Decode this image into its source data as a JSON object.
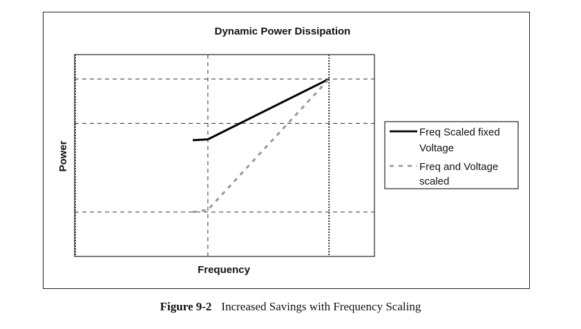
{
  "chart_data": {
    "type": "line",
    "title": "Dynamic Power Dissipation",
    "xlabel": "Frequency",
    "ylabel": "Power",
    "grid": true,
    "legend_position": "right",
    "series": [
      {
        "name": "Freq Scaled fixed Voltage",
        "style": "solid",
        "color": "#000000",
        "x": [
          1.95,
          2.2,
          4.2
        ],
        "y": [
          1.62,
          1.64,
          3.0
        ]
      },
      {
        "name": "Freq and Voltage scaled",
        "style": "dashed",
        "color": "#999999",
        "x": [
          1.95,
          2.2,
          4.2
        ],
        "y": [
          0.0,
          0.05,
          3.0
        ]
      }
    ],
    "legend": [
      {
        "lines": [
          "Freq Scaled fixed",
          "Voltage"
        ]
      },
      {
        "lines": [
          "Freq and Voltage",
          "scaled"
        ]
      }
    ]
  },
  "caption": {
    "number": "Figure 9-2",
    "text": "Increased Savings with Frequency Scaling"
  }
}
